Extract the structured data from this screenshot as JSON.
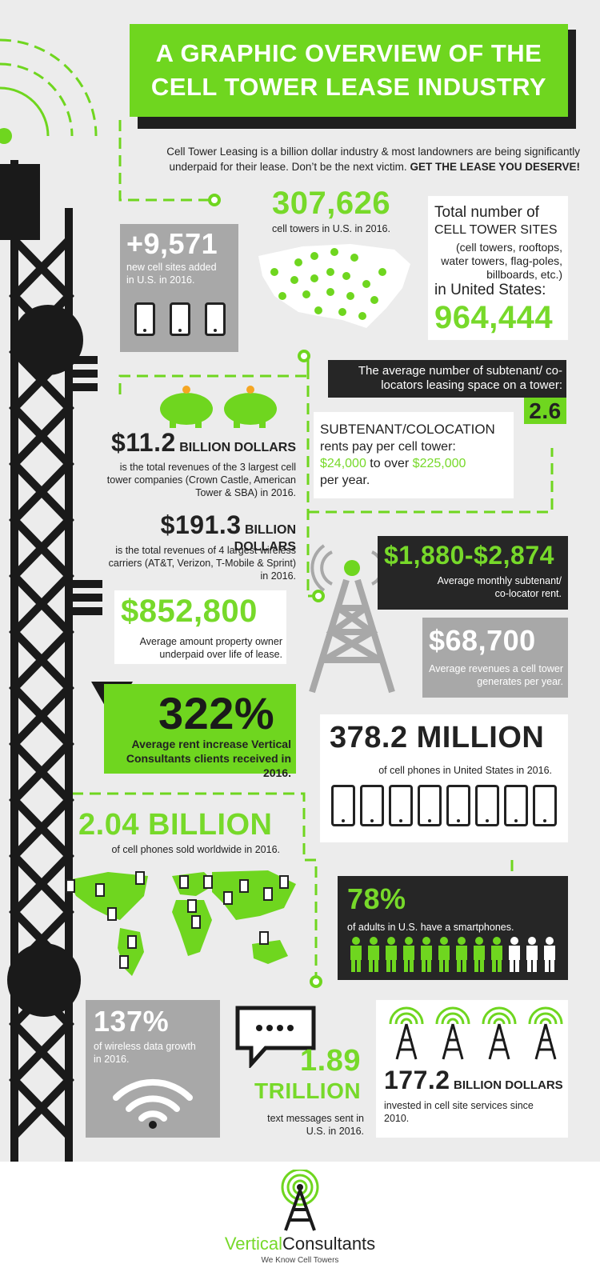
{
  "title": {
    "line1": "A GRAPHIC OVERVIEW OF THE",
    "line2": "CELL TOWER LEASE INDUSTRY"
  },
  "intro": {
    "text": "Cell Tower Leasing is a billion dollar industry & most landowners are being significantly underpaid for their lease. Don’t be the next victim.",
    "cta": "GET THE LEASE YOU DESERVE!"
  },
  "stats": {
    "new_sites": {
      "value": "+9,571",
      "label": "new cell sites added in U.S. in 2016."
    },
    "towers": {
      "value": "307,626",
      "label": "cell towers in U.S. in 2016."
    },
    "sites_total": {
      "label": "Total number of",
      "heading": "CELL TOWER SITES",
      "desc": "(cell towers, rooftops, water towers, flag-poles, billboards, etc.)",
      "suffix": "in United States:",
      "value": "964,444"
    },
    "subtenants": {
      "label": "The average number of subtenant/ co-locators leasing space on a tower:",
      "value": "2.6"
    },
    "colocation": {
      "heading": "SUBTENANT/COLOCATION",
      "text1": "rents pay per cell tower:",
      "low": "$24,000",
      "mid": "to over",
      "high": "$225,000",
      "text2": "per year."
    },
    "revenue_3": {
      "value": "$11.2",
      "unit": "BILLION DOLLARS",
      "label": "is the total revenues of the 3 largest cell tower companies (Crown Castle, American Tower & SBA) in 2016."
    },
    "revenue_4": {
      "value": "$191.3",
      "unit": "BILLION DOLLARS",
      "label": "is the total revenues of 4 largest wireless carriers (AT&T, Verizon, T-Mobile & Sprint) in 2016."
    },
    "monthly_rent": {
      "value": "$1,880-$2,874",
      "label": "Average monthly subtenant/ co-locator rent."
    },
    "underpaid": {
      "value": "$852,800",
      "label": "Average amount property owner underpaid over life of lease."
    },
    "tower_revenue": {
      "value": "$68,700",
      "label": "Average revenues a cell tower generates per year."
    },
    "rent_increase": {
      "value": "322%",
      "label": "Average rent increase Vertical Consultants clients received in 2016.",
      "icon": "exclamation-icon"
    },
    "phones_us": {
      "value": "378.2 MILLION",
      "label": "of cell phones in United States in 2016."
    },
    "phones_world": {
      "value": "2.04 BILLION",
      "label": "of cell phones sold worldwide in 2016."
    },
    "smartphones": {
      "value": "78%",
      "label": "of adults in U.S. have a smartphones.",
      "green_count": 9,
      "total_count": 12
    },
    "data_growth": {
      "value": "137%",
      "label": "of wireless data growth in 2016."
    },
    "texts": {
      "value1": "1.89",
      "value2": "TRILLION",
      "label": "text messages sent in U.S. in 2016."
    },
    "invested": {
      "value": "177.2",
      "unit": "BILLION DOLLARS",
      "label": "invested in cell site services since 2010."
    }
  },
  "footer": {
    "brand1": "Vertical",
    "brand2": "Consultants",
    "tagline": "We Know Cell Towers"
  },
  "colors": {
    "accent": "#6fd61f",
    "dark": "#262626",
    "gray": "#a8a8a8",
    "bg": "#ececec"
  }
}
